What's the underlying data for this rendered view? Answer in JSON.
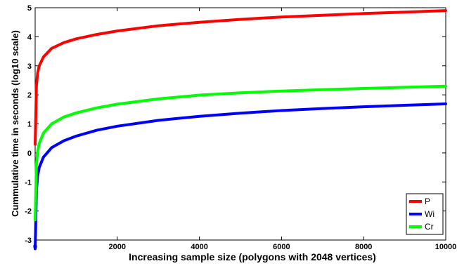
{
  "chart_data": {
    "type": "line",
    "title": "",
    "xlabel": "Increasing sample size (polygons with 2048 vertices)",
    "ylabel": "Cummulative time in seconds (log10 scale)",
    "xlim": [
      0,
      10000
    ],
    "ylim": [
      -3,
      5
    ],
    "x_ticks": [
      0,
      2000,
      4000,
      6000,
      8000,
      10000
    ],
    "y_ticks": [
      -3,
      -2,
      -1,
      0,
      1,
      2,
      3,
      4,
      5
    ],
    "grid": false,
    "legend_position": "bottom-right",
    "x": [
      10,
      30,
      60,
      100,
      200,
      400,
      700,
      1000,
      1500,
      2000,
      3000,
      4000,
      5000,
      6000,
      7000,
      8000,
      9000,
      10000
    ],
    "series": [
      {
        "name": "P",
        "color": "#ff0000",
        "values": [
          0.9,
          2.3,
          2.75,
          3.0,
          3.3,
          3.6,
          3.8,
          3.93,
          4.08,
          4.2,
          4.38,
          4.5,
          4.6,
          4.68,
          4.74,
          4.8,
          4.85,
          4.9
        ]
      },
      {
        "name": "Wi",
        "color": "#0000ff",
        "values": [
          -2.7,
          -1.3,
          -0.8,
          -0.5,
          -0.15,
          0.18,
          0.42,
          0.58,
          0.78,
          0.92,
          1.12,
          1.26,
          1.37,
          1.46,
          1.53,
          1.59,
          1.64,
          1.69
        ]
      },
      {
        "name": "Cr",
        "color": "#00ff00",
        "values": [
          -1.7,
          -0.4,
          0.05,
          0.33,
          0.68,
          1.0,
          1.24,
          1.38,
          1.55,
          1.68,
          1.86,
          1.99,
          2.07,
          2.13,
          2.18,
          2.22,
          2.26,
          2.3
        ]
      }
    ]
  }
}
